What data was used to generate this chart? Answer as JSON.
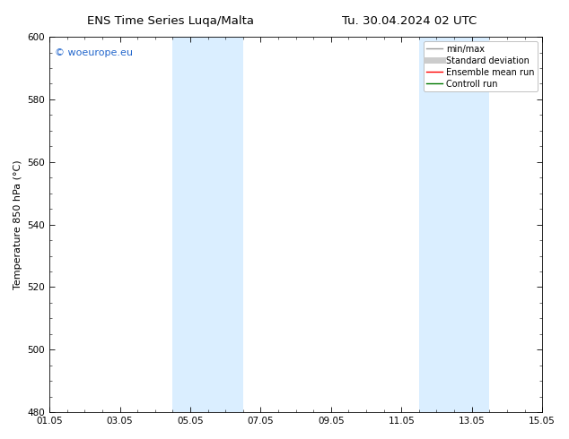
{
  "title_left": "ENS Time Series Luqa/Malta",
  "title_right": "Tu. 30.04.2024 02 UTC",
  "ylabel": "Temperature 850 hPa (°C)",
  "ylim": [
    480,
    600
  ],
  "yticks": [
    480,
    500,
    520,
    540,
    560,
    580,
    600
  ],
  "xtick_labels": [
    "01.05",
    "03.05",
    "05.05",
    "07.05",
    "09.05",
    "11.05",
    "13.05",
    "15.05"
  ],
  "xtick_positions": [
    0,
    2,
    4,
    6,
    8,
    10,
    12,
    14
  ],
  "xlim": [
    0,
    14
  ],
  "shaded_bands": [
    {
      "x_start": 3.5,
      "x_end": 5.5,
      "color": "#daeeff"
    },
    {
      "x_start": 10.5,
      "x_end": 12.5,
      "color": "#daeeff"
    }
  ],
  "bg_color": "#ffffff",
  "plot_bg_color": "#ffffff",
  "watermark_text": "© woeurope.eu",
  "watermark_color": "#2266cc",
  "legend_items": [
    {
      "label": "min/max",
      "color": "#999999",
      "lw": 1.0,
      "style": "solid"
    },
    {
      "label": "Standard deviation",
      "color": "#cccccc",
      "lw": 5,
      "style": "solid"
    },
    {
      "label": "Ensemble mean run",
      "color": "#ff0000",
      "lw": 1.0,
      "style": "solid"
    },
    {
      "label": "Controll run",
      "color": "#007700",
      "lw": 1.0,
      "style": "solid"
    }
  ],
  "font_size_title": 9.5,
  "font_size_axis": 8,
  "font_size_tick": 7.5,
  "font_size_legend": 7,
  "font_size_watermark": 8
}
